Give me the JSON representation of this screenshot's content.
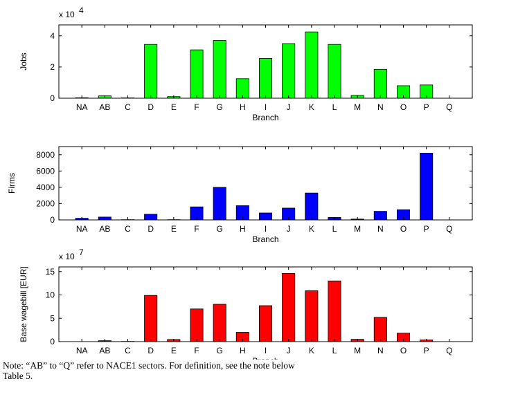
{
  "chart_data": [
    {
      "type": "bar",
      "categories": [
        "NA",
        "AB",
        "C",
        "D",
        "E",
        "F",
        "G",
        "H",
        "I",
        "J",
        "K",
        "L",
        "M",
        "N",
        "O",
        "P",
        "Q"
      ],
      "values": [
        300,
        1500,
        200,
        34500,
        1000,
        31000,
        37000,
        12500,
        25500,
        35000,
        42500,
        34500,
        1800,
        18500,
        8000,
        8500,
        0
      ],
      "color": "#00ff00",
      "xlabel": "Branch",
      "ylabel": "Jobs",
      "exponent_label": "x 10",
      "exponent_power": "4",
      "ylim": [
        0,
        47000
      ],
      "yticks": [
        0,
        20000,
        40000
      ],
      "ytick_labels": [
        "0",
        "2",
        "4"
      ],
      "grid": false
    },
    {
      "type": "bar",
      "categories": [
        "NA",
        "AB",
        "C",
        "D",
        "E",
        "F",
        "G",
        "H",
        "I",
        "J",
        "K",
        "L",
        "M",
        "N",
        "O",
        "P",
        "Q"
      ],
      "values": [
        200,
        350,
        30,
        700,
        30,
        1600,
        4000,
        1750,
        850,
        1450,
        3300,
        300,
        100,
        1050,
        1250,
        8200,
        0
      ],
      "color": "#0000ff",
      "xlabel": "Branch",
      "ylabel": "Firms",
      "ylim": [
        0,
        9000
      ],
      "yticks": [
        0,
        2000,
        4000,
        6000,
        8000
      ],
      "ytick_labels": [
        "0",
        "2000",
        "4000",
        "6000",
        "8000"
      ],
      "grid": false
    },
    {
      "type": "bar",
      "categories": [
        "NA",
        "AB",
        "C",
        "D",
        "E",
        "F",
        "G",
        "H",
        "I",
        "J",
        "K",
        "L",
        "M",
        "N",
        "O",
        "P",
        "Q"
      ],
      "values": [
        5000,
        2000000,
        500000,
        99000000,
        4500000,
        70000000,
        80000000,
        20000000,
        77000000,
        146000000,
        109000000,
        130000000,
        5000000,
        52000000,
        18000000,
        3500000,
        0
      ],
      "color": "#ff0000",
      "xlabel": "Branch",
      "ylabel": "Base wagebill [EUR]",
      "exponent_label": "x 10",
      "exponent_power": "7",
      "ylim": [
        0,
        160000000
      ],
      "yticks": [
        0,
        50000000,
        100000000,
        150000000
      ],
      "ytick_labels": [
        "0",
        "5",
        "10",
        "15"
      ],
      "grid": false
    }
  ],
  "note": {
    "line1": "Note: “AB” to “Q” refer to NACE1 sectors. For definition, see the note below",
    "line2": "Table 5."
  }
}
